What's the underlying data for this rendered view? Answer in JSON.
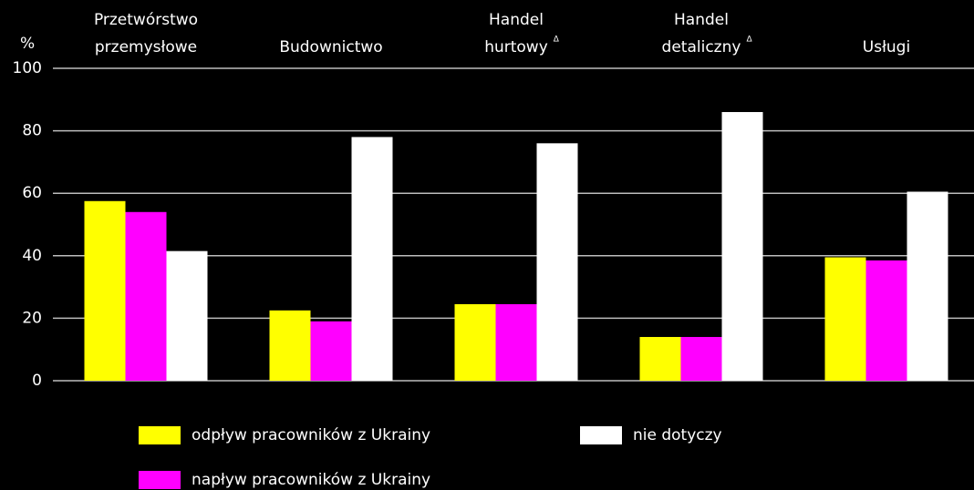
{
  "chart_data": {
    "type": "bar",
    "y_axis_label": "%",
    "categories": [
      [
        "Przetwórstwo",
        "przemysłowe"
      ],
      [
        "Budownictwo"
      ],
      [
        "Handel",
        "hurtowy"
      ],
      [
        "Handel",
        "detaliczny"
      ],
      [
        "Usługi"
      ]
    ],
    "category_marks": [
      null,
      null,
      "Δ",
      "Δ",
      null
    ],
    "series": [
      {
        "name": "odpływ pracowników z Ukrainy",
        "color": "#ffff00",
        "values": [
          57.5,
          22.5,
          24.5,
          14,
          39.5
        ]
      },
      {
        "name": "napływ pracowników z Ukrainy",
        "color": "#ff00ff",
        "values": [
          54,
          19,
          24.5,
          14,
          38.5
        ]
      },
      {
        "name": "nie dotyczy",
        "color": "#ffffff",
        "values": [
          41.5,
          78,
          76,
          86,
          60.5
        ]
      }
    ],
    "ylim": [
      0,
      100
    ],
    "yticks": [
      0,
      20,
      40,
      60,
      80,
      100
    ],
    "grid": true
  }
}
